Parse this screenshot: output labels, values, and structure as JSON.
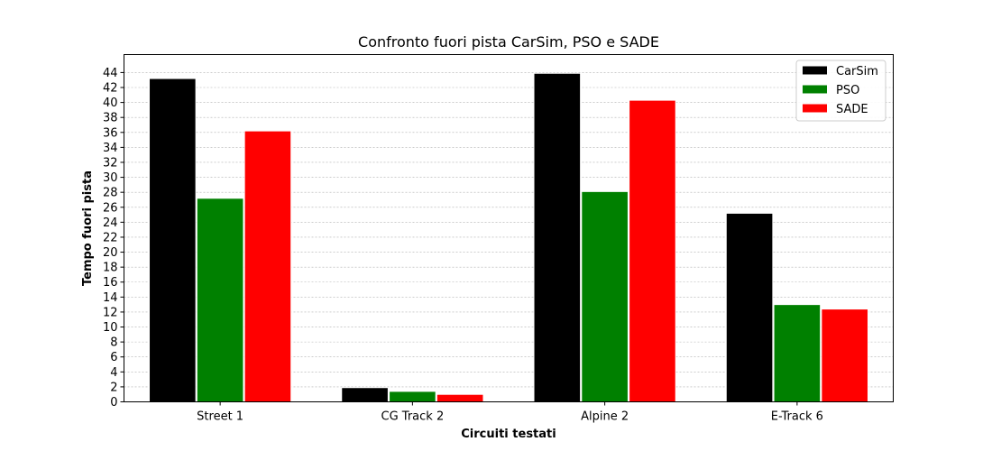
{
  "chart_data": {
    "type": "bar",
    "title": "Confronto fuori pista CarSim, PSO e SADE",
    "xlabel": "Circuiti testati",
    "ylabel": "Tempo fuori pista",
    "categories": [
      "Street 1",
      "CG Track 2",
      "Alpine 2",
      "E-Track 6"
    ],
    "series": [
      {
        "name": "CarSim",
        "color": "#000000",
        "values": [
          43.2,
          1.9,
          43.9,
          25.2
        ]
      },
      {
        "name": "PSO",
        "color": "#008000",
        "values": [
          27.2,
          1.4,
          28.1,
          13.0
        ]
      },
      {
        "name": "SADE",
        "color": "#ff0000",
        "values": [
          36.2,
          1.0,
          40.3,
          12.4
        ]
      }
    ],
    "ylim": [
      0,
      46.4
    ],
    "yticks": [
      0,
      2,
      4,
      6,
      8,
      10,
      12,
      14,
      16,
      18,
      20,
      22,
      24,
      26,
      28,
      30,
      32,
      34,
      36,
      38,
      40,
      42,
      44
    ],
    "grid": true,
    "legend_position": "top-right"
  }
}
